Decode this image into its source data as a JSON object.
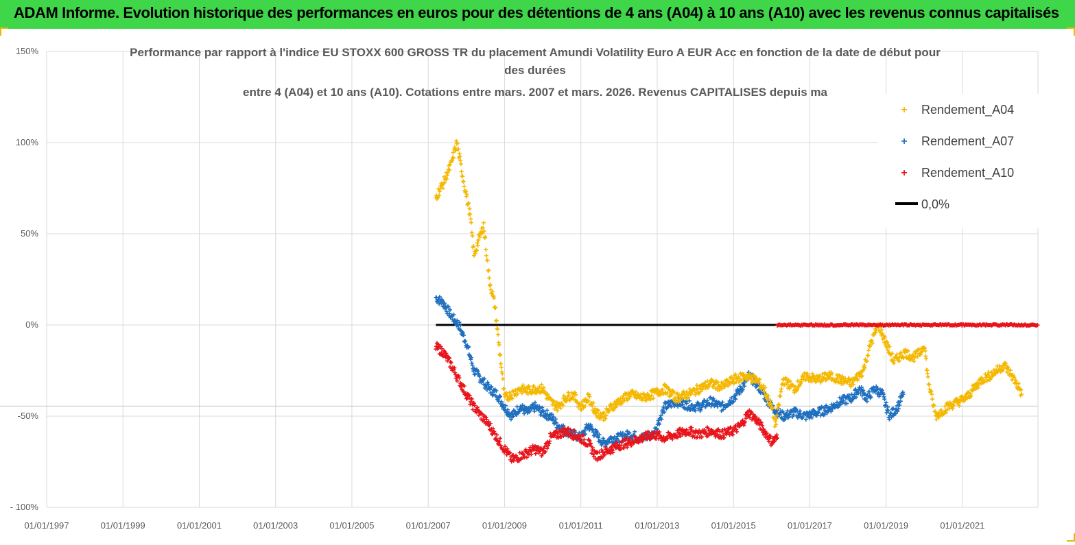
{
  "banner": {
    "title": "ADAM Informe. Evolution historique des performances en euros pour des détentions de 4 ans (A04) à 10 ans (A10) avec les revenus connus capitalisés"
  },
  "colors": {
    "banner_bg": "#3fd64a",
    "A04": "#f5b800",
    "A07": "#1f6fbf",
    "A10": "#e8141b",
    "zero_line": "#000000",
    "grid": "#d9d9d9"
  },
  "chart_data": {
    "type": "scatter",
    "title_lines": [
      "Performance par rapport à l'indice EU STOXX 600 GROSS TR  du placement Amundi Volatility Euro A EUR Acc  en fonction de la date de début pour",
      "des durées",
      "entre 4 (A04) et 10 ans (A10). Cotations entre mars. 2007 et mars. 2026. Revenus CAPITALISES depuis ma"
    ],
    "xlabel": "",
    "ylabel": "",
    "xlim": [
      "1997-01-01",
      "2022-10-01"
    ],
    "ylim": [
      -100,
      150
    ],
    "y_ticks": [
      {
        "value": 150,
        "label": "150%"
      },
      {
        "value": 100,
        "label": "100%"
      },
      {
        "value": 50,
        "label": "50%"
      },
      {
        "value": 0,
        "label": "0%"
      },
      {
        "value": -50,
        "label": "-50%"
      },
      {
        "value": -100,
        "label": "- 100%"
      }
    ],
    "x_ticks": [
      {
        "value": 1997.0,
        "label": "01/01/1997"
      },
      {
        "value": 1999.0,
        "label": "01/01/1999"
      },
      {
        "value": 2001.0,
        "label": "01/01/2001"
      },
      {
        "value": 2003.0,
        "label": "01/01/2003"
      },
      {
        "value": 2005.0,
        "label": "01/01/2005"
      },
      {
        "value": 2007.0,
        "label": "01/01/2007"
      },
      {
        "value": 2009.0,
        "label": "01/01/2009"
      },
      {
        "value": 2011.0,
        "label": "01/01/2011"
      },
      {
        "value": 2013.0,
        "label": "01/01/2013"
      },
      {
        "value": 2015.0,
        "label": "01/01/2015"
      },
      {
        "value": 2017.0,
        "label": "01/01/2017"
      },
      {
        "value": 2019.0,
        "label": "01/01/2019"
      },
      {
        "value": 2021.0,
        "label": "01/01/2021"
      }
    ],
    "legend_position": "top-right",
    "series": [
      {
        "name": "Rendement_A04",
        "marker": "plus",
        "x": [
          2007.2,
          2007.4,
          2007.6,
          2007.75,
          2007.9,
          2008.1,
          2008.2,
          2008.3,
          2008.45,
          2008.6,
          2008.75,
          2008.9,
          2009.0,
          2009.2,
          2009.4,
          2009.6,
          2009.8,
          2010.0,
          2010.2,
          2010.4,
          2010.6,
          2010.8,
          2011.0,
          2011.2,
          2011.4,
          2011.6,
          2011.8,
          2012.0,
          2012.3,
          2012.6,
          2012.9,
          2013.2,
          2013.5,
          2013.8,
          2014.1,
          2014.4,
          2014.7,
          2015.0,
          2015.3,
          2015.6,
          2015.8,
          2016.0,
          2016.1,
          2016.3,
          2016.6,
          2016.9,
          2017.2,
          2017.5,
          2017.8,
          2018.1,
          2018.4,
          2018.6,
          2018.8,
          2019.0,
          2019.2,
          2019.5,
          2019.7,
          2019.9,
          2020.0,
          2020.05,
          2020.1,
          2020.3,
          2020.6,
          2020.9,
          2021.1,
          2021.3,
          2021.5,
          2021.7,
          2021.9,
          2022.1,
          2022.3,
          2022.5,
          2022.55
        ],
        "values": [
          70,
          78,
          88,
          100,
          82,
          60,
          38,
          45,
          55,
          25,
          10,
          -20,
          -40,
          -38,
          -35,
          -36,
          -35,
          -35,
          -42,
          -45,
          -40,
          -38,
          -45,
          -40,
          -48,
          -50,
          -45,
          -42,
          -38,
          -40,
          -38,
          -35,
          -40,
          -38,
          -35,
          -32,
          -34,
          -30,
          -28,
          -30,
          -35,
          -45,
          -55,
          -30,
          -35,
          -28,
          -30,
          -28,
          -30,
          -32,
          -25,
          -10,
          0,
          -10,
          -20,
          -15,
          -18,
          -15,
          -10,
          -20,
          -30,
          -50,
          -45,
          -42,
          -40,
          -35,
          -30,
          -28,
          -25,
          -22,
          -28,
          -35,
          -38
        ]
      },
      {
        "name": "Rendement_A07",
        "marker": "plus",
        "x": [
          2007.2,
          2007.4,
          2007.6,
          2007.8,
          2008.0,
          2008.2,
          2008.4,
          2008.6,
          2008.8,
          2009.0,
          2009.2,
          2009.4,
          2009.6,
          2009.8,
          2010.0,
          2010.2,
          2010.4,
          2010.6,
          2010.8,
          2011.0,
          2011.2,
          2011.4,
          2011.6,
          2011.8,
          2012.0,
          2012.3,
          2012.6,
          2012.9,
          2013.2,
          2013.5,
          2013.8,
          2014.1,
          2014.4,
          2014.7,
          2015.0,
          2015.2,
          2015.4,
          2015.6,
          2015.8,
          2016.0,
          2016.3,
          2016.6,
          2016.9,
          2017.2,
          2017.5,
          2017.8,
          2018.1,
          2018.3,
          2018.5,
          2018.7,
          2018.9,
          2019.0,
          2019.1,
          2019.3,
          2019.45
        ],
        "values": [
          15,
          12,
          5,
          0,
          -10,
          -25,
          -30,
          -35,
          -38,
          -45,
          -50,
          -45,
          -48,
          -45,
          -48,
          -50,
          -55,
          -58,
          -60,
          -62,
          -55,
          -60,
          -65,
          -62,
          -62,
          -60,
          -62,
          -60,
          -45,
          -42,
          -44,
          -45,
          -42,
          -45,
          -40,
          -35,
          -28,
          -32,
          -38,
          -45,
          -50,
          -48,
          -50,
          -48,
          -46,
          -42,
          -40,
          -35,
          -40,
          -35,
          -38,
          -45,
          -50,
          -45,
          -38
        ]
      },
      {
        "name": "Rendement_A10",
        "marker": "plus",
        "x": [
          2007.2,
          2007.4,
          2007.6,
          2007.8,
          2008.0,
          2008.2,
          2008.4,
          2008.6,
          2008.8,
          2009.0,
          2009.2,
          2009.4,
          2009.6,
          2009.8,
          2010.0,
          2010.2,
          2010.4,
          2010.6,
          2010.8,
          2011.0,
          2011.2,
          2011.4,
          2011.6,
          2011.8,
          2012.0,
          2012.3,
          2012.6,
          2012.9,
          2013.2,
          2013.5,
          2013.8,
          2014.1,
          2014.4,
          2014.7,
          2015.0,
          2015.2,
          2015.4,
          2015.6,
          2015.8,
          2016.0,
          2016.15
        ],
        "values": [
          -12,
          -15,
          -22,
          -30,
          -38,
          -45,
          -50,
          -55,
          -62,
          -68,
          -74,
          -72,
          -70,
          -68,
          -70,
          -62,
          -60,
          -58,
          -60,
          -62,
          -65,
          -72,
          -70,
          -68,
          -66,
          -64,
          -62,
          -60,
          -62,
          -60,
          -58,
          -60,
          -58,
          -60,
          -58,
          -55,
          -48,
          -52,
          -58,
          -64,
          -62
        ]
      },
      {
        "name": "Rendement_A10_zero_segment",
        "legend": false,
        "marker": "plus",
        "x_start": 2016.15,
        "x_end": 2022.98,
        "value": 0
      },
      {
        "name": "0,0%",
        "marker": "line",
        "x_start": 2007.2,
        "x_end": 2016.15,
        "value": 0
      }
    ],
    "legend": [
      {
        "label": "Rendement_A04",
        "symbol": "plus",
        "color_key": "A04"
      },
      {
        "label": "Rendement_A07",
        "symbol": "plus",
        "color_key": "A07"
      },
      {
        "label": "Rendement_A10",
        "symbol": "plus",
        "color_key": "A10"
      },
      {
        "label": "0,0%",
        "symbol": "line",
        "color_key": "zero_line"
      }
    ]
  }
}
